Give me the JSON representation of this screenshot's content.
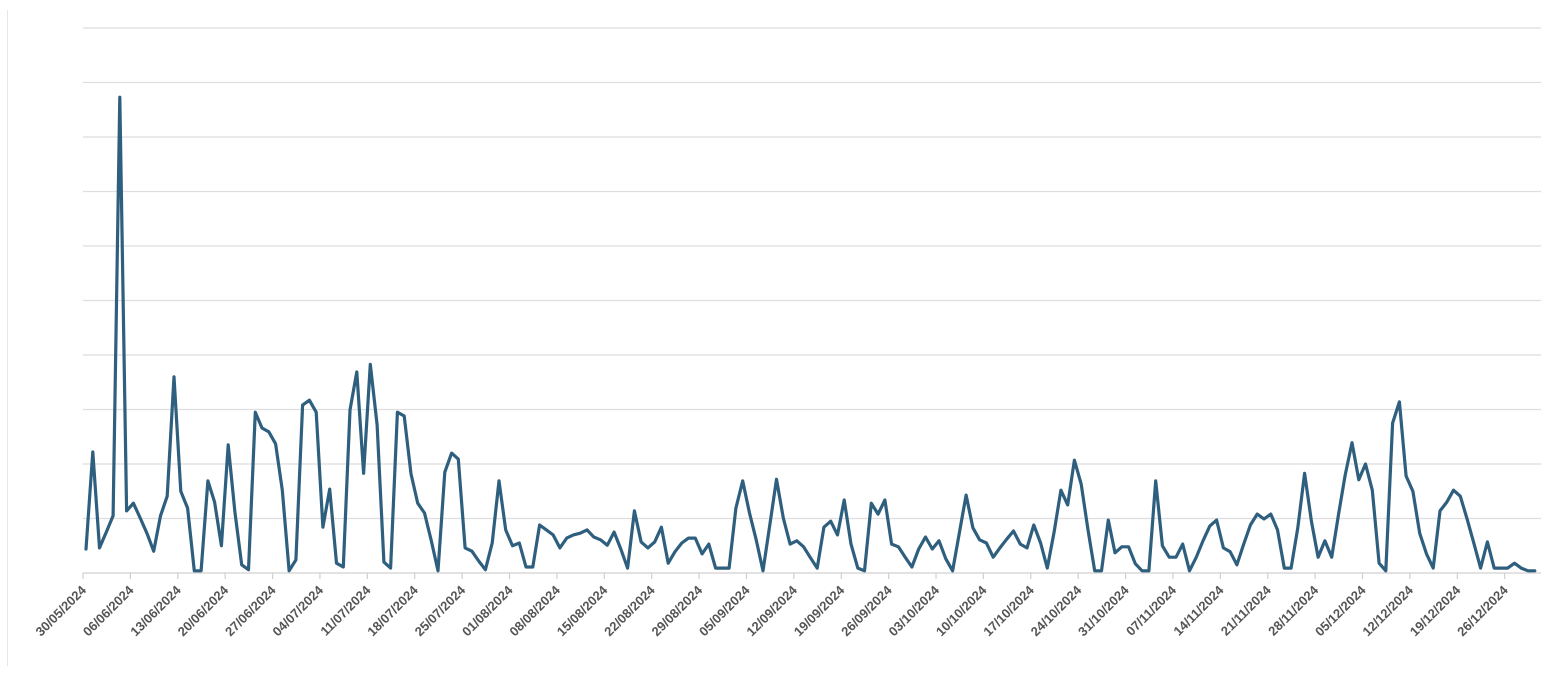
{
  "chart_data": {
    "type": "line",
    "title": "",
    "xlabel": "",
    "ylabel": "",
    "y_tick_labels_visible": false,
    "ylim": [
      0,
      10
    ],
    "y_units_note": "values in gridline units (no y-axis labels shown)",
    "grid": true,
    "gridlines_count": 10,
    "legend": null,
    "line_color": "#2f5f7e",
    "grid_color": "#dedede",
    "tick_label_color": "#555555",
    "start_date": "30/05/2024",
    "frequency": "daily",
    "x_tick_labels": [
      "30/05/2024",
      "06/06/2024",
      "13/06/2024",
      "20/06/2024",
      "27/06/2024",
      "04/07/2024",
      "11/07/2024",
      "18/07/2024",
      "25/07/2024",
      "01/08/2024",
      "08/08/2024",
      "15/08/2024",
      "22/08/2024",
      "29/08/2024",
      "05/09/2024",
      "12/09/2024",
      "19/09/2024",
      "26/09/2024",
      "03/10/2024",
      "10/10/2024",
      "17/10/2024",
      "24/10/2024",
      "31/10/2024",
      "07/11/2024",
      "14/11/2024",
      "21/11/2024",
      "28/11/2024",
      "05/12/2024",
      "12/12/2024",
      "19/12/2024",
      "26/12/2024"
    ],
    "values": [
      0.44,
      2.22,
      0.46,
      0.75,
      1.05,
      8.73,
      1.14,
      1.28,
      1.01,
      0.73,
      0.4,
      1.05,
      1.41,
      3.6,
      1.5,
      1.19,
      0.04,
      0.04,
      1.69,
      1.3,
      0.5,
      2.35,
      1.12,
      0.15,
      0.06,
      2.95,
      2.66,
      2.59,
      2.37,
      1.52,
      0.04,
      0.24,
      3.08,
      3.17,
      2.95,
      0.84,
      1.54,
      0.18,
      0.11,
      2.99,
      3.69,
      1.83,
      3.83,
      2.72,
      0.2,
      0.09,
      2.95,
      2.88,
      1.82,
      1.28,
      1.1,
      0.59,
      0.04,
      1.85,
      2.2,
      2.09,
      0.46,
      0.4,
      0.22,
      0.06,
      0.55,
      1.69,
      0.79,
      0.5,
      0.55,
      0.11,
      0.11,
      0.88,
      0.79,
      0.7,
      0.46,
      0.64,
      0.7,
      0.73,
      0.79,
      0.66,
      0.61,
      0.51,
      0.75,
      0.44,
      0.09,
      1.14,
      0.57,
      0.46,
      0.57,
      0.84,
      0.18,
      0.39,
      0.55,
      0.64,
      0.64,
      0.35,
      0.53,
      0.09,
      0.09,
      0.09,
      1.19,
      1.69,
      1.1,
      0.61,
      0.04,
      0.88,
      1.72,
      1.01,
      0.53,
      0.59,
      0.48,
      0.28,
      0.09,
      0.84,
      0.95,
      0.7,
      1.34,
      0.53,
      0.09,
      0.04,
      1.28,
      1.08,
      1.34,
      0.53,
      0.48,
      0.29,
      0.11,
      0.44,
      0.66,
      0.44,
      0.59,
      0.26,
      0.04,
      0.73,
      1.43,
      0.83,
      0.61,
      0.55,
      0.29,
      0.46,
      0.62,
      0.77,
      0.53,
      0.46,
      0.88,
      0.55,
      0.09,
      0.75,
      1.52,
      1.25,
      2.07,
      1.63,
      0.79,
      0.04,
      0.04,
      0.97,
      0.37,
      0.48,
      0.48,
      0.17,
      0.04,
      0.04,
      1.69,
      0.5,
      0.29,
      0.29,
      0.53,
      0.04,
      0.29,
      0.59,
      0.86,
      0.97,
      0.46,
      0.39,
      0.15,
      0.53,
      0.88,
      1.08,
      0.99,
      1.08,
      0.79,
      0.09,
      0.09,
      0.83,
      1.83,
      0.95,
      0.29,
      0.59,
      0.29,
      1.06,
      1.8,
      2.39,
      1.71,
      2.0,
      1.52,
      0.18,
      0.04,
      2.75,
      3.14,
      1.78,
      1.5,
      0.73,
      0.35,
      0.09,
      1.14,
      1.3,
      1.52,
      1.41,
      0.99,
      0.55,
      0.09,
      0.57,
      0.09,
      0.09,
      0.09,
      0.18,
      0.09,
      0.04,
      0.04
    ]
  }
}
